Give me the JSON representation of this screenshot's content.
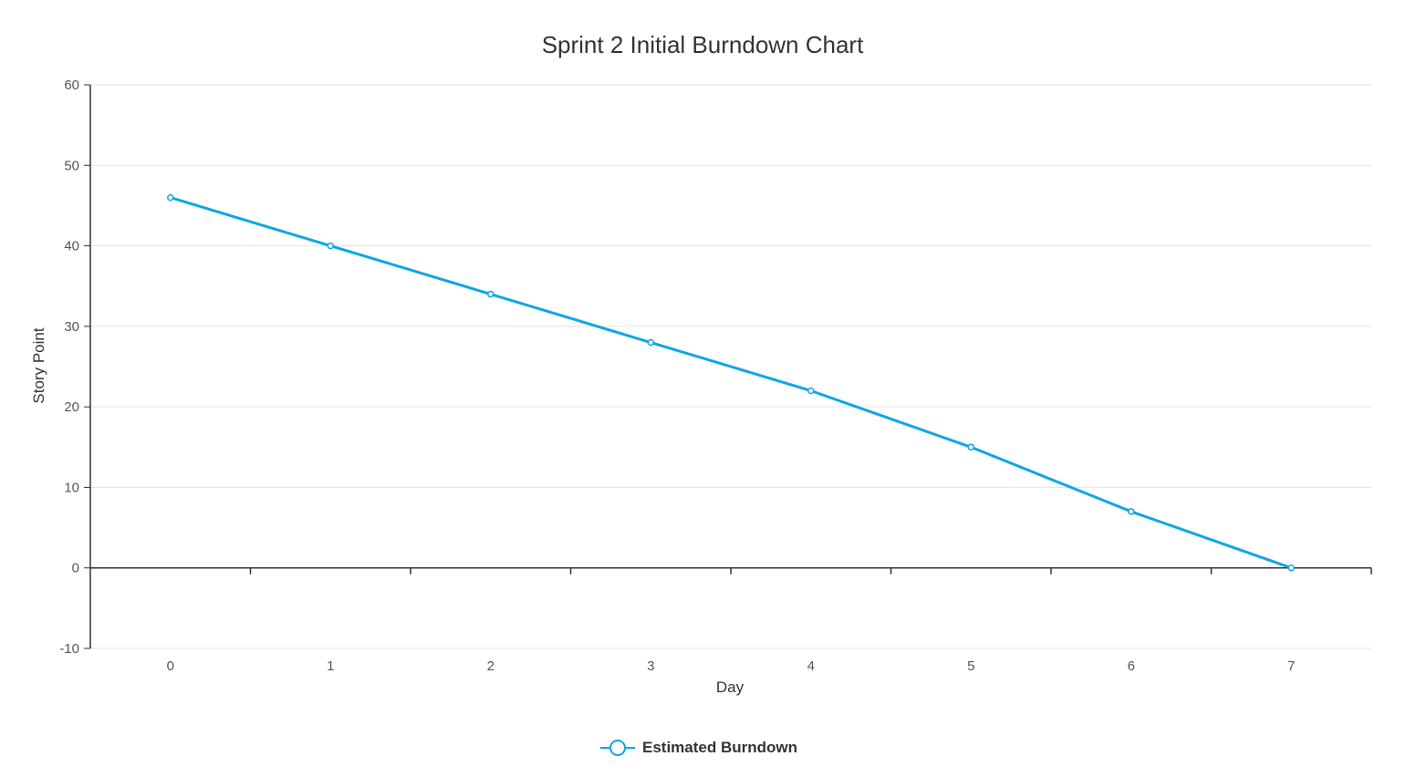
{
  "chart_data": {
    "type": "line",
    "title": "Sprint 2 Initial Burndown Chart",
    "xlabel": "Day",
    "ylabel": "Story Point",
    "categories": [
      "0",
      "1",
      "2",
      "3",
      "4",
      "5",
      "6",
      "7"
    ],
    "series": [
      {
        "name": "Estimated Burndown",
        "values": [
          46,
          40,
          34,
          28,
          22,
          15,
          7,
          0
        ],
        "color": "#0fa6e3"
      }
    ],
    "ylim": [
      -10,
      60
    ],
    "yticks": [
      "60",
      "50",
      "40",
      "30",
      "20",
      "10",
      "0",
      "-10"
    ],
    "grid": true,
    "legend_position": "bottom-center"
  }
}
